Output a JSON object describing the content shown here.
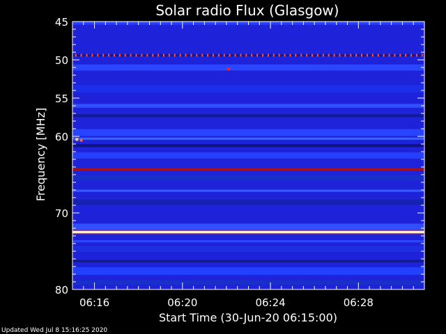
{
  "chart_data": {
    "type": "heatmap",
    "title": "Solar radio Flux (Glasgow)",
    "ylabel": "Frequency [MHz]",
    "xlabel": "Start Time (30-Jun-20 06:15:00)",
    "ylim": [
      45,
      80
    ],
    "y_inverted": true,
    "xlim_minutes": [
      0,
      16
    ],
    "y_ticks": [
      45,
      50,
      55,
      60,
      70,
      80
    ],
    "x_ticks": [
      {
        "label": "06:16",
        "minutes": 1
      },
      {
        "label": "06:20",
        "minutes": 5
      },
      {
        "label": "06:24",
        "minutes": 9
      },
      {
        "label": "06:28",
        "minutes": 13
      }
    ],
    "background_color": "#1e22d8",
    "bands": [
      {
        "freq": 45.2,
        "width": 0.4,
        "color": "#2840ff"
      },
      {
        "freq": 49.4,
        "width": 0.3,
        "color": "#1418a0"
      },
      {
        "freq": 51.0,
        "width": 0.8,
        "color": "#2a46ff"
      },
      {
        "freq": 53.8,
        "width": 1.0,
        "color": "#1c2ee8"
      },
      {
        "freq": 56.0,
        "width": 0.5,
        "color": "#3050ff"
      },
      {
        "freq": 57.3,
        "width": 0.4,
        "color": "#121a9a"
      },
      {
        "freq": 59.5,
        "width": 0.9,
        "color": "#2844ff"
      },
      {
        "freq": 60.3,
        "width": 0.3,
        "color": "#3a60ff"
      },
      {
        "freq": 61.2,
        "width": 0.4,
        "color": "#101480"
      },
      {
        "freq": 62.5,
        "width": 0.8,
        "color": "#2640ff"
      },
      {
        "freq": 64.3,
        "width": 0.35,
        "color": "#a01020"
      },
      {
        "freq": 65.4,
        "width": 0.6,
        "color": "#1830c8"
      },
      {
        "freq": 67.1,
        "width": 0.3,
        "color": "#3458ff"
      },
      {
        "freq": 68.6,
        "width": 0.7,
        "color": "#1424b0"
      },
      {
        "freq": 71.8,
        "width": 0.8,
        "color": "#3050ff"
      },
      {
        "freq": 72.5,
        "width": 0.5,
        "color": "#ff4020"
      },
      {
        "freq": 72.5,
        "width": 0.25,
        "color": "#fffde0"
      },
      {
        "freq": 73.7,
        "width": 0.3,
        "color": "#2a48ff"
      },
      {
        "freq": 74.7,
        "width": 0.8,
        "color": "#1c2ee0"
      },
      {
        "freq": 76.3,
        "width": 0.3,
        "color": "#121a90"
      },
      {
        "freq": 77.6,
        "width": 1.0,
        "color": "#2440ff"
      },
      {
        "freq": 79.1,
        "width": 0.6,
        "color": "#1830c8"
      }
    ],
    "periodic_dots": {
      "freq": 49.4,
      "color": "#ff5040",
      "spacing_minutes": 0.25
    },
    "spots": [
      {
        "minutes": 7.1,
        "freq": 51.2,
        "color": "#ff2020"
      },
      {
        "minutes": 0.2,
        "freq": 60.4,
        "color": "#ffd060"
      },
      {
        "minutes": 0.4,
        "freq": 60.5,
        "color": "#ff6040"
      }
    ],
    "grid": false
  },
  "footer": {
    "updated": "Updated Wed Jul  8 15:16:25 2020"
  }
}
